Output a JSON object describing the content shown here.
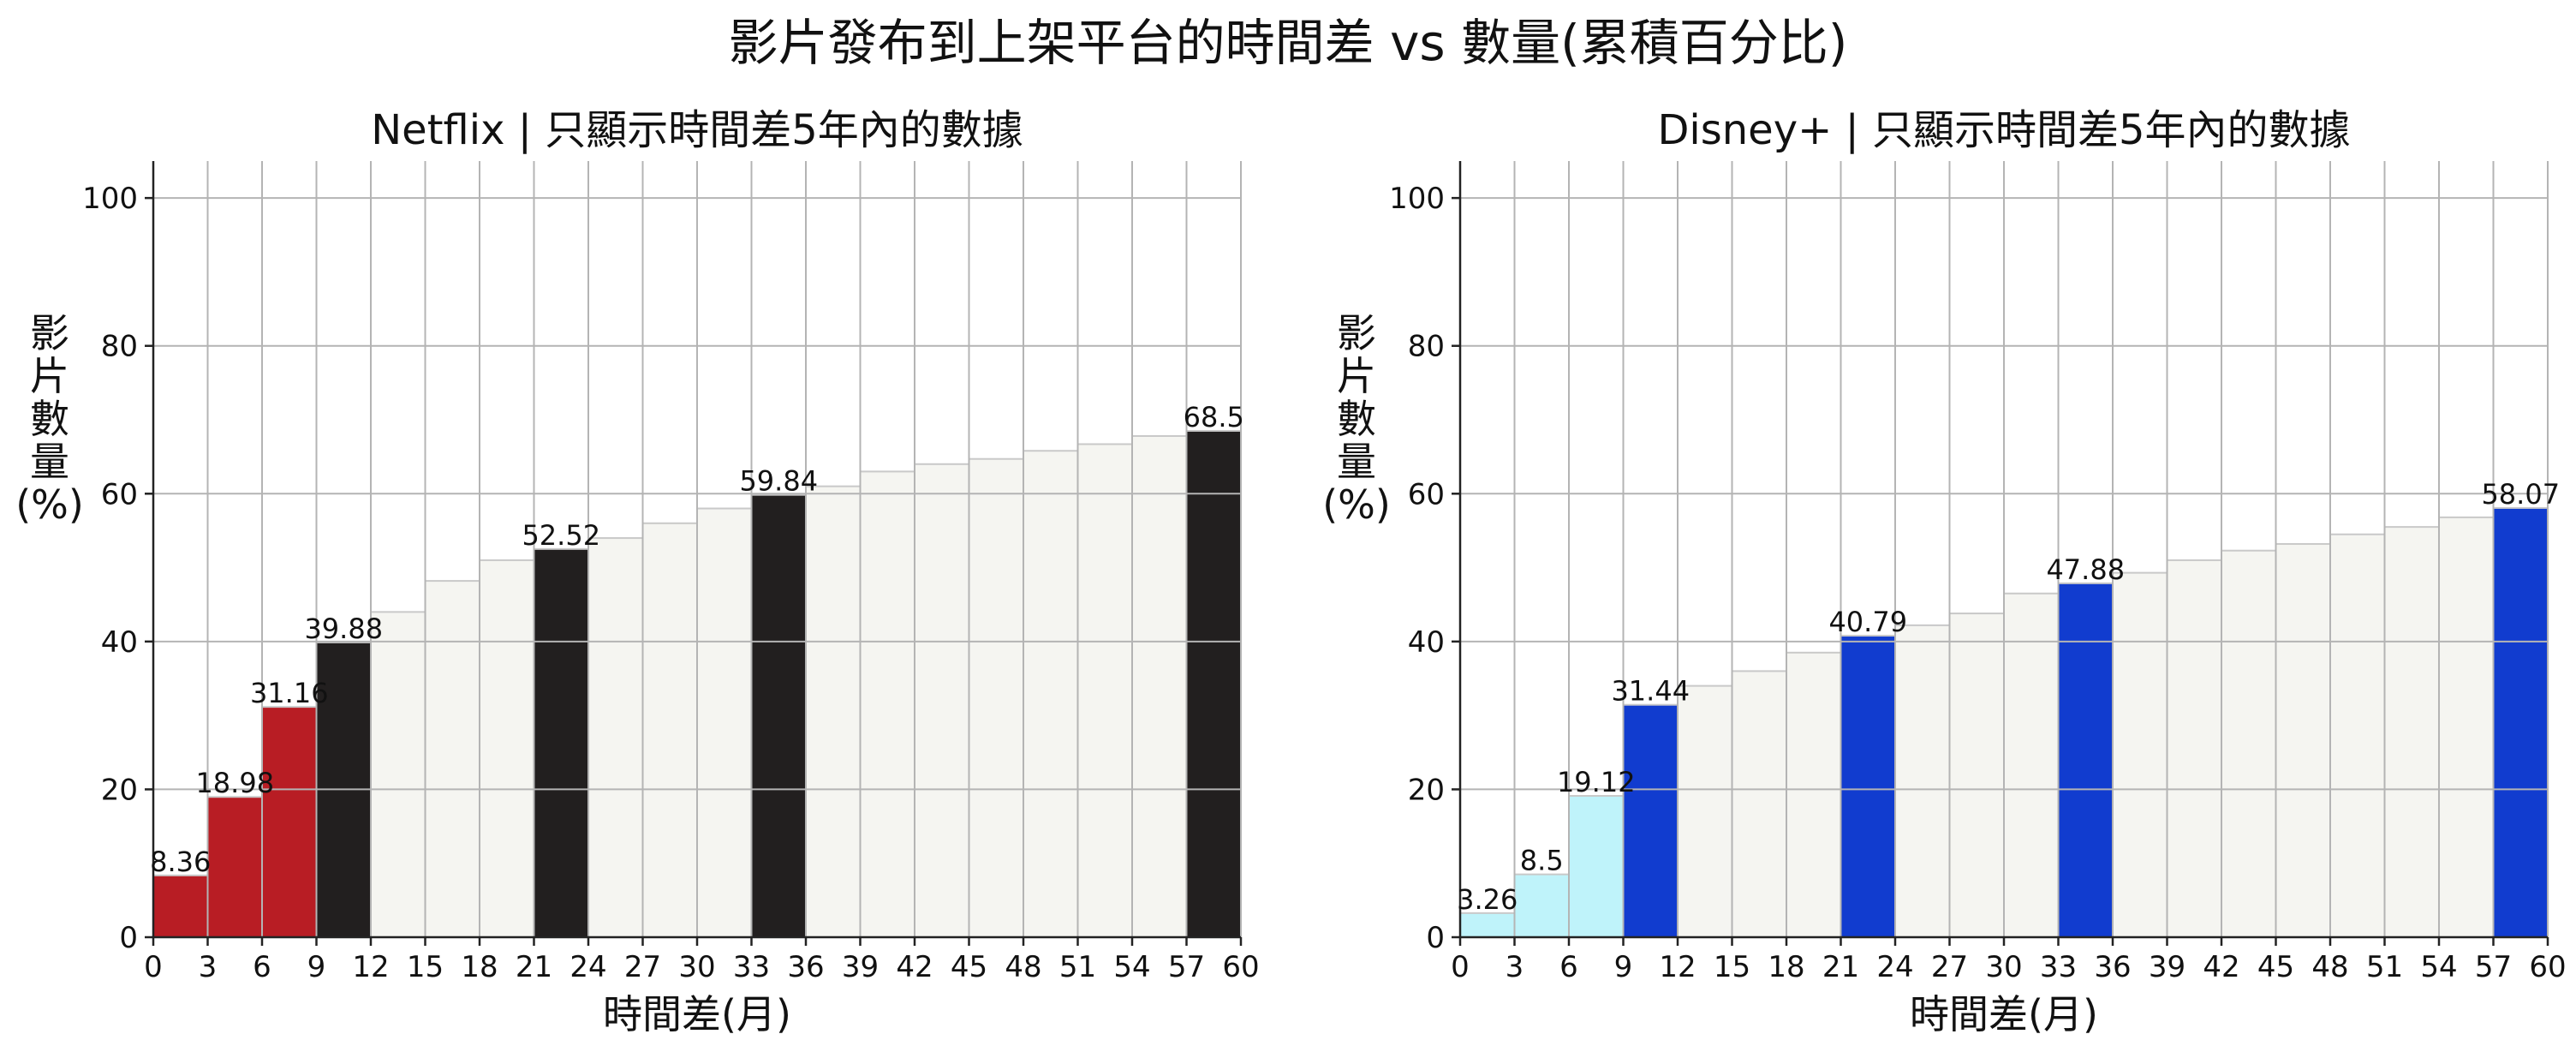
{
  "figure": {
    "suptitle": "影片發布到上架平台的時間差 vs 數量(累積百分比)"
  },
  "chart_data": [
    {
      "type": "bar",
      "title": "Netflix | 只顯示時間差5年內的數據",
      "xlabel": "時間差(月)",
      "ylabel": "影片數量(%)",
      "x_bin_edges": [
        0,
        3,
        6,
        9,
        12,
        15,
        18,
        21,
        24,
        27,
        30,
        33,
        36,
        39,
        42,
        45,
        48,
        51,
        54,
        57,
        60
      ],
      "values": [
        8.36,
        18.98,
        31.16,
        39.88,
        44.0,
        48.2,
        51.0,
        52.52,
        54.0,
        56.0,
        58.0,
        59.84,
        61.0,
        63.0,
        64.0,
        64.7,
        65.8,
        66.7,
        67.8,
        68.5
      ],
      "highlighted_labels": [
        "8.36",
        "18.98",
        "31.16",
        "39.88",
        "52.52",
        "59.84",
        "68.5"
      ],
      "bar_colors": [
        "#b81d24",
        "#b81d24",
        "#b81d24",
        "#221f1f",
        "#f5f5f1",
        "#f5f5f1",
        "#f5f5f1",
        "#221f1f",
        "#f5f5f1",
        "#f5f5f1",
        "#f5f5f1",
        "#221f1f",
        "#f5f5f1",
        "#f5f5f1",
        "#f5f5f1",
        "#f5f5f1",
        "#f5f5f1",
        "#f5f5f1",
        "#f5f5f1",
        "#221f1f"
      ],
      "label_indices": [
        0,
        1,
        2,
        3,
        7,
        11,
        19
      ],
      "xticks": [
        0,
        3,
        6,
        9,
        12,
        15,
        18,
        21,
        24,
        27,
        30,
        33,
        36,
        39,
        42,
        45,
        48,
        51,
        54,
        57,
        60
      ],
      "yticks": [
        0,
        20,
        40,
        60,
        80,
        100
      ],
      "xlim": [
        0,
        60
      ],
      "ylim": [
        0,
        105
      ],
      "grid": true
    },
    {
      "type": "bar",
      "title": "Disney+ | 只顯示時間差5年內的數據",
      "xlabel": "時間差(月)",
      "ylabel": "影片數量(%)",
      "x_bin_edges": [
        0,
        3,
        6,
        9,
        12,
        15,
        18,
        21,
        24,
        27,
        30,
        33,
        36,
        39,
        42,
        45,
        48,
        51,
        54,
        57,
        60
      ],
      "values": [
        3.26,
        8.5,
        19.12,
        31.44,
        34.0,
        36.0,
        38.5,
        40.79,
        42.2,
        43.8,
        46.5,
        47.88,
        49.3,
        51.0,
        52.3,
        53.2,
        54.5,
        55.5,
        56.8,
        58.07
      ],
      "highlighted_labels": [
        "3.26",
        "8.5",
        "19.12",
        "31.44",
        "40.79",
        "47.88",
        "58.07"
      ],
      "bar_colors": [
        "#bff3fa",
        "#bff3fa",
        "#bff3fa",
        "#113ccf",
        "#f5f5f1",
        "#f5f5f1",
        "#f5f5f1",
        "#113ccf",
        "#f5f5f1",
        "#f5f5f1",
        "#f5f5f1",
        "#113ccf",
        "#f5f5f1",
        "#f5f5f1",
        "#f5f5f1",
        "#f5f5f1",
        "#f5f5f1",
        "#f5f5f1",
        "#f5f5f1",
        "#113ccf"
      ],
      "label_indices": [
        0,
        1,
        2,
        3,
        7,
        11,
        19
      ],
      "xticks": [
        0,
        3,
        6,
        9,
        12,
        15,
        18,
        21,
        24,
        27,
        30,
        33,
        36,
        39,
        42,
        45,
        48,
        51,
        54,
        57,
        60
      ],
      "yticks": [
        0,
        20,
        40,
        60,
        80,
        100
      ],
      "xlim": [
        0,
        60
      ],
      "ylim": [
        0,
        105
      ],
      "grid": true
    }
  ]
}
